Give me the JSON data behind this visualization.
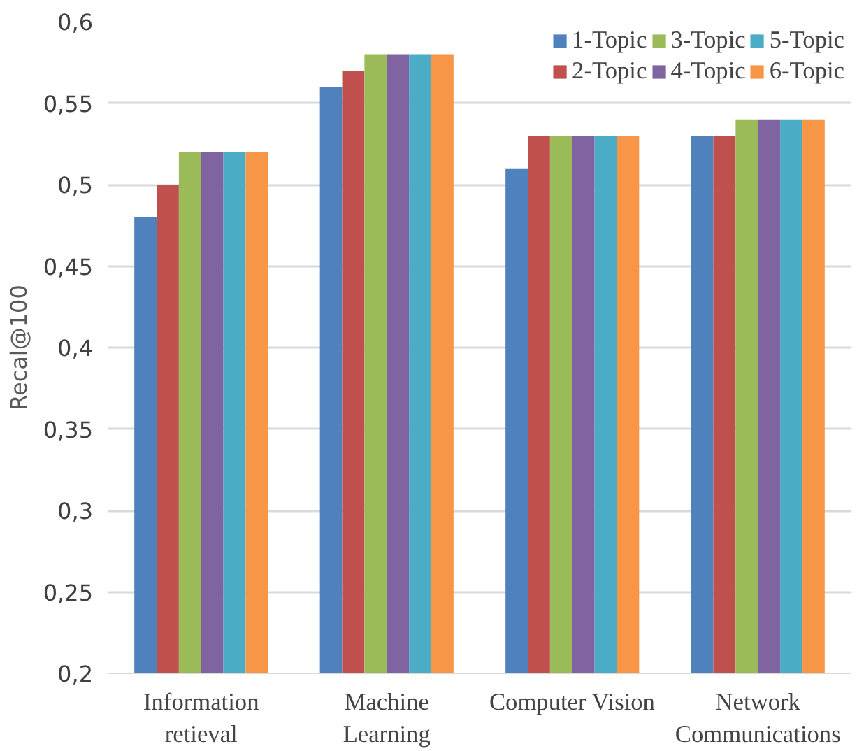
{
  "chart_data": {
    "type": "bar",
    "ylabel": "Recal@100",
    "categories": [
      "Information\nretieval",
      "Machine\nLearning",
      "Computer Vision",
      "Network\nCommunications"
    ],
    "series": [
      {
        "name": "1-Topic",
        "color": "#4f81bd",
        "values": [
          0.48,
          0.56,
          0.51,
          0.53
        ]
      },
      {
        "name": "2-Topic",
        "color": "#c0504d",
        "values": [
          0.5,
          0.57,
          0.53,
          0.53
        ]
      },
      {
        "name": "3-Topic",
        "color": "#9bbb59",
        "values": [
          0.52,
          0.58,
          0.53,
          0.54
        ]
      },
      {
        "name": "4-Topic",
        "color": "#8064a2",
        "values": [
          0.52,
          0.58,
          0.53,
          0.54
        ]
      },
      {
        "name": "5-Topic",
        "color": "#4bacc6",
        "values": [
          0.52,
          0.58,
          0.53,
          0.54
        ]
      },
      {
        "name": "6-Topic",
        "color": "#f79646",
        "values": [
          0.52,
          0.58,
          0.53,
          0.54
        ]
      }
    ],
    "ylim": [
      0.2,
      0.6
    ],
    "yticks": [
      {
        "value": 0.2,
        "label": "0,2"
      },
      {
        "value": 0.25,
        "label": "0,25"
      },
      {
        "value": 0.3,
        "label": "0,3"
      },
      {
        "value": 0.35,
        "label": "0,35"
      },
      {
        "value": 0.4,
        "label": "0,4"
      },
      {
        "value": 0.45,
        "label": "0,45"
      },
      {
        "value": 0.5,
        "label": "0,5"
      },
      {
        "value": 0.55,
        "label": "0,55"
      },
      {
        "value": 0.6,
        "label": "0,6"
      }
    ],
    "grid": "y",
    "legend": "top right"
  }
}
